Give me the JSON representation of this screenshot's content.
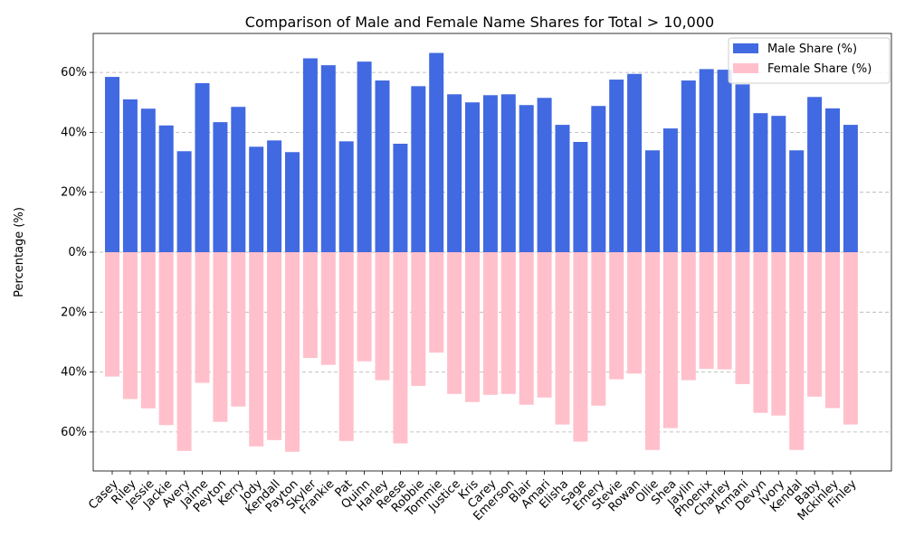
{
  "chart_data": {
    "type": "bar",
    "title": "Comparison of Male and Female Name Shares for Total > 10,000",
    "xlabel": "",
    "ylabel": "Percentage (%)",
    "ylim": [
      -73,
      73
    ],
    "yticks": [
      60,
      40,
      20,
      0,
      -20,
      -40,
      -60
    ],
    "ytick_labels": [
      "60%",
      "40%",
      "20%",
      "0%",
      "20%",
      "40%",
      "60%"
    ],
    "grid": "y-dashed",
    "legend_position": "top-right",
    "categories": [
      "Casey",
      "Riley",
      "Jessie",
      "Jackie",
      "Avery",
      "Jaime",
      "Peyton",
      "Kerry",
      "Jody",
      "Kendall",
      "Payton",
      "Skyler",
      "Frankie",
      "Pat",
      "Quinn",
      "Harley",
      "Reese",
      "Robbie",
      "Tommie",
      "Justice",
      "Kris",
      "Carey",
      "Emerson",
      "Blair",
      "Amari",
      "Elisha",
      "Sage",
      "Emery",
      "Stevie",
      "Rowan",
      "Ollie",
      "Shea",
      "Jaylin",
      "Phoenix",
      "Charley",
      "Armani",
      "Devyn",
      "Ivory",
      "Kendal",
      "Baby",
      "Mckinley",
      "Finley"
    ],
    "series": [
      {
        "name": "Male Share (%)",
        "color": "#4169e1",
        "values": [
          58.5,
          51.0,
          47.9,
          42.3,
          33.7,
          56.4,
          43.4,
          48.5,
          35.2,
          37.3,
          33.4,
          64.7,
          62.4,
          37.0,
          63.6,
          57.3,
          36.2,
          55.4,
          66.5,
          52.7,
          50.0,
          52.4,
          52.7,
          49.1,
          51.5,
          42.5,
          36.8,
          48.8,
          57.6,
          59.5,
          34.0,
          41.3,
          57.3,
          61.1,
          60.9,
          56.0,
          46.4,
          45.5,
          34.0,
          51.8,
          48.0,
          42.5
        ]
      },
      {
        "name": "Female Share (%)",
        "color": "#ffc0cb",
        "values": [
          41.5,
          49.0,
          52.1,
          57.7,
          66.3,
          43.6,
          56.6,
          51.5,
          64.8,
          62.7,
          66.6,
          35.3,
          37.6,
          63.0,
          36.4,
          42.7,
          63.8,
          44.6,
          33.5,
          47.3,
          50.0,
          47.6,
          47.3,
          50.9,
          48.5,
          57.5,
          63.2,
          51.2,
          42.4,
          40.5,
          66.0,
          58.7,
          42.7,
          38.9,
          39.1,
          44.0,
          53.6,
          54.5,
          66.0,
          48.2,
          52.0,
          57.5
        ]
      }
    ]
  }
}
